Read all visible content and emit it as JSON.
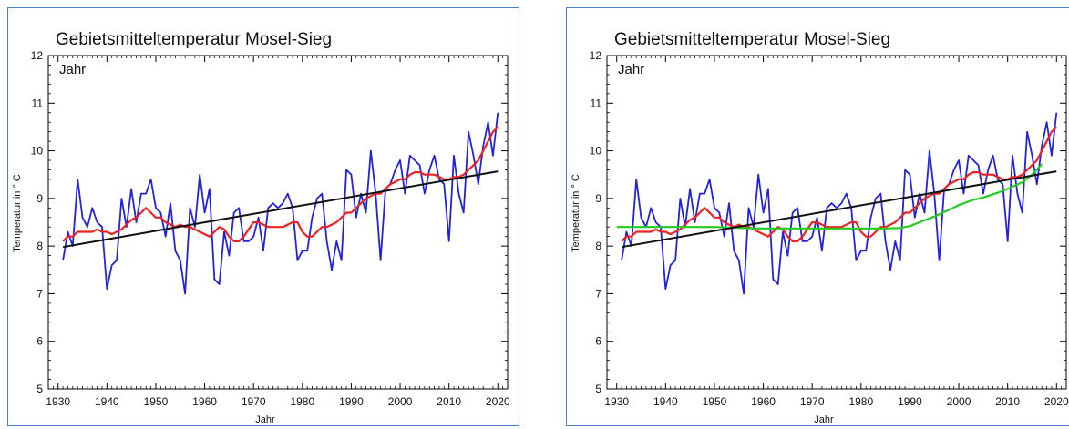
{
  "chart_data": [
    {
      "type": "line",
      "title": "Gebietsmitteltemperatur Mosel-Sieg",
      "corner_label": "Jahr",
      "xlabel": "Jahr",
      "ylabel": "Temperatur in ° C",
      "xlim": [
        1928,
        2022
      ],
      "ylim": [
        5,
        12
      ],
      "x_ticks": [
        1930,
        1940,
        1950,
        1960,
        1970,
        1980,
        1990,
        2000,
        2010,
        2020
      ],
      "y_ticks": [
        5,
        6,
        7,
        8,
        9,
        10,
        11,
        12
      ],
      "x_tick_labels": [
        "1930",
        "1940",
        "1950",
        "1960",
        "1970",
        "1980",
        "1990",
        "2000",
        "2010",
        "2020"
      ],
      "y_tick_labels": [
        "5",
        "6",
        "7",
        "8",
        "9",
        "10",
        "11",
        "12"
      ],
      "grid": false,
      "series": [
        {
          "color": "#2222dd",
          "x": [
            1931,
            1932,
            1933,
            1934,
            1935,
            1936,
            1937,
            1938,
            1939,
            1940,
            1941,
            1942,
            1943,
            1944,
            1945,
            1946,
            1947,
            1948,
            1949,
            1950,
            1951,
            1952,
            1953,
            1954,
            1955,
            1956,
            1957,
            1958,
            1959,
            1960,
            1961,
            1962,
            1963,
            1964,
            1965,
            1966,
            1967,
            1968,
            1969,
            1970,
            1971,
            1972,
            1973,
            1974,
            1975,
            1976,
            1977,
            1978,
            1979,
            1980,
            1981,
            1982,
            1983,
            1984,
            1985,
            1986,
            1987,
            1988,
            1989,
            1990,
            1991,
            1992,
            1993,
            1994,
            1995,
            1996,
            1997,
            1998,
            1999,
            2000,
            2001,
            2002,
            2003,
            2004,
            2005,
            2006,
            2007,
            2008,
            2009,
            2010,
            2011,
            2012,
            2013,
            2014,
            2015,
            2016,
            2017,
            2018,
            2019,
            2020
          ],
          "values": [
            7.7,
            8.3,
            8.0,
            9.4,
            8.6,
            8.4,
            8.8,
            8.5,
            8.4,
            7.1,
            7.6,
            7.7,
            9.0,
            8.4,
            9.2,
            8.5,
            9.1,
            9.1,
            9.4,
            8.8,
            8.7,
            8.2,
            8.9,
            7.9,
            7.7,
            7.0,
            8.8,
            8.4,
            9.5,
            8.7,
            9.2,
            7.3,
            7.2,
            8.3,
            7.8,
            8.7,
            8.8,
            8.1,
            8.1,
            8.2,
            8.6,
            7.9,
            8.8,
            8.9,
            8.8,
            8.9,
            9.1,
            8.8,
            7.7,
            7.9,
            7.9,
            8.6,
            9.0,
            9.1,
            8.1,
            7.5,
            8.1,
            7.7,
            9.6,
            9.5,
            8.6,
            9.1,
            8.7,
            10.0,
            9.1,
            7.7,
            9.2,
            9.3,
            9.6,
            9.8,
            9.1,
            9.9,
            9.8,
            9.7,
            9.1,
            9.6,
            9.9,
            9.4,
            9.3,
            8.1,
            9.9,
            9.1,
            8.7,
            10.4,
            9.9,
            9.3,
            10.1,
            10.6,
            9.9,
            10.8
          ]
        },
        {
          "color": "#ee2222",
          "x": [
            1931,
            1932,
            1933,
            1934,
            1935,
            1936,
            1937,
            1938,
            1939,
            1940,
            1941,
            1942,
            1943,
            1944,
            1945,
            1946,
            1947,
            1948,
            1949,
            1950,
            1951,
            1952,
            1953,
            1954,
            1955,
            1956,
            1957,
            1958,
            1959,
            1960,
            1961,
            1962,
            1963,
            1964,
            1965,
            1966,
            1967,
            1968,
            1969,
            1970,
            1971,
            1972,
            1973,
            1974,
            1975,
            1976,
            1977,
            1978,
            1979,
            1980,
            1981,
            1982,
            1983,
            1984,
            1985,
            1986,
            1987,
            1988,
            1989,
            1990,
            1991,
            1992,
            1993,
            1994,
            1995,
            1996,
            1997,
            1998,
            1999,
            2000,
            2001,
            2002,
            2003,
            2004,
            2005,
            2006,
            2007,
            2008,
            2009,
            2010,
            2011,
            2012,
            2013,
            2014,
            2015,
            2016,
            2017,
            2018,
            2019,
            2020
          ],
          "values": [
            8.1,
            8.2,
            8.2,
            8.3,
            8.3,
            8.3,
            8.3,
            8.35,
            8.3,
            8.3,
            8.25,
            8.3,
            8.35,
            8.45,
            8.55,
            8.6,
            8.7,
            8.8,
            8.7,
            8.6,
            8.6,
            8.5,
            8.45,
            8.4,
            8.45,
            8.4,
            8.4,
            8.35,
            8.3,
            8.25,
            8.2,
            8.3,
            8.4,
            8.35,
            8.2,
            8.1,
            8.1,
            8.2,
            8.35,
            8.5,
            8.5,
            8.45,
            8.4,
            8.4,
            8.4,
            8.4,
            8.45,
            8.5,
            8.5,
            8.3,
            8.2,
            8.2,
            8.3,
            8.4,
            8.4,
            8.45,
            8.5,
            8.6,
            8.7,
            8.7,
            8.8,
            8.9,
            9.0,
            9.05,
            9.1,
            9.1,
            9.2,
            9.3,
            9.35,
            9.4,
            9.4,
            9.5,
            9.55,
            9.55,
            9.5,
            9.5,
            9.5,
            9.45,
            9.4,
            9.4,
            9.45,
            9.45,
            9.5,
            9.6,
            9.7,
            9.8,
            10.0,
            10.2,
            10.4,
            10.5
          ]
        },
        {
          "color": "#111111",
          "x": [
            1931,
            2020
          ],
          "values": [
            7.98,
            9.57
          ]
        }
      ]
    },
    {
      "type": "line",
      "title": "Gebietsmitteltemperatur Mosel-Sieg",
      "corner_label": "Jahr",
      "xlabel": "Jahr",
      "ylabel": "Temperatur in ° C",
      "xlim": [
        1928,
        2022
      ],
      "ylim": [
        5,
        12
      ],
      "x_ticks": [
        1930,
        1940,
        1950,
        1960,
        1970,
        1980,
        1990,
        2000,
        2010,
        2020
      ],
      "y_ticks": [
        5,
        6,
        7,
        8,
        9,
        10,
        11,
        12
      ],
      "x_tick_labels": [
        "1930",
        "1940",
        "1950",
        "1960",
        "1970",
        "1980",
        "1990",
        "2000",
        "2010",
        "2020"
      ],
      "y_tick_labels": [
        "5",
        "6",
        "7",
        "8",
        "9",
        "10",
        "11",
        "12"
      ],
      "grid": false,
      "series": [
        {
          "color": "#2222dd",
          "x": [
            1931,
            1932,
            1933,
            1934,
            1935,
            1936,
            1937,
            1938,
            1939,
            1940,
            1941,
            1942,
            1943,
            1944,
            1945,
            1946,
            1947,
            1948,
            1949,
            1950,
            1951,
            1952,
            1953,
            1954,
            1955,
            1956,
            1957,
            1958,
            1959,
            1960,
            1961,
            1962,
            1963,
            1964,
            1965,
            1966,
            1967,
            1968,
            1969,
            1970,
            1971,
            1972,
            1973,
            1974,
            1975,
            1976,
            1977,
            1978,
            1979,
            1980,
            1981,
            1982,
            1983,
            1984,
            1985,
            1986,
            1987,
            1988,
            1989,
            1990,
            1991,
            1992,
            1993,
            1994,
            1995,
            1996,
            1997,
            1998,
            1999,
            2000,
            2001,
            2002,
            2003,
            2004,
            2005,
            2006,
            2007,
            2008,
            2009,
            2010,
            2011,
            2012,
            2013,
            2014,
            2015,
            2016,
            2017,
            2018,
            2019,
            2020
          ],
          "values": [
            7.7,
            8.3,
            8.0,
            9.4,
            8.6,
            8.4,
            8.8,
            8.5,
            8.4,
            7.1,
            7.6,
            7.7,
            9.0,
            8.4,
            9.2,
            8.5,
            9.1,
            9.1,
            9.4,
            8.8,
            8.7,
            8.2,
            8.9,
            7.9,
            7.7,
            7.0,
            8.8,
            8.4,
            9.5,
            8.7,
            9.2,
            7.3,
            7.2,
            8.3,
            7.8,
            8.7,
            8.8,
            8.1,
            8.1,
            8.2,
            8.6,
            7.9,
            8.8,
            8.9,
            8.8,
            8.9,
            9.1,
            8.8,
            7.7,
            7.9,
            7.9,
            8.6,
            9.0,
            9.1,
            8.1,
            7.5,
            8.1,
            7.7,
            9.6,
            9.5,
            8.6,
            9.1,
            8.7,
            10.0,
            9.1,
            7.7,
            9.2,
            9.3,
            9.6,
            9.8,
            9.1,
            9.9,
            9.8,
            9.7,
            9.1,
            9.6,
            9.9,
            9.4,
            9.3,
            8.1,
            9.9,
            9.1,
            8.7,
            10.4,
            9.9,
            9.3,
            10.1,
            10.6,
            9.9,
            10.8
          ]
        },
        {
          "color": "#ee2222",
          "x": [
            1931,
            1932,
            1933,
            1934,
            1935,
            1936,
            1937,
            1938,
            1939,
            1940,
            1941,
            1942,
            1943,
            1944,
            1945,
            1946,
            1947,
            1948,
            1949,
            1950,
            1951,
            1952,
            1953,
            1954,
            1955,
            1956,
            1957,
            1958,
            1959,
            1960,
            1961,
            1962,
            1963,
            1964,
            1965,
            1966,
            1967,
            1968,
            1969,
            1970,
            1971,
            1972,
            1973,
            1974,
            1975,
            1976,
            1977,
            1978,
            1979,
            1980,
            1981,
            1982,
            1983,
            1984,
            1985,
            1986,
            1987,
            1988,
            1989,
            1990,
            1991,
            1992,
            1993,
            1994,
            1995,
            1996,
            1997,
            1998,
            1999,
            2000,
            2001,
            2002,
            2003,
            2004,
            2005,
            2006,
            2007,
            2008,
            2009,
            2010,
            2011,
            2012,
            2013,
            2014,
            2015,
            2016,
            2017,
            2018,
            2019,
            2020
          ],
          "values": [
            8.1,
            8.2,
            8.2,
            8.3,
            8.3,
            8.3,
            8.3,
            8.35,
            8.3,
            8.3,
            8.25,
            8.3,
            8.35,
            8.45,
            8.55,
            8.6,
            8.7,
            8.8,
            8.7,
            8.6,
            8.6,
            8.5,
            8.45,
            8.4,
            8.45,
            8.4,
            8.4,
            8.35,
            8.3,
            8.25,
            8.2,
            8.3,
            8.4,
            8.35,
            8.2,
            8.1,
            8.1,
            8.2,
            8.35,
            8.5,
            8.5,
            8.45,
            8.4,
            8.4,
            8.4,
            8.4,
            8.45,
            8.5,
            8.5,
            8.3,
            8.2,
            8.2,
            8.3,
            8.4,
            8.4,
            8.45,
            8.5,
            8.6,
            8.7,
            8.7,
            8.8,
            8.9,
            9.0,
            9.05,
            9.1,
            9.1,
            9.2,
            9.3,
            9.35,
            9.4,
            9.4,
            9.5,
            9.55,
            9.55,
            9.5,
            9.5,
            9.5,
            9.45,
            9.4,
            9.4,
            9.45,
            9.45,
            9.5,
            9.6,
            9.7,
            9.8,
            10.0,
            10.2,
            10.4,
            10.5
          ]
        },
        {
          "color": "#22cc22",
          "x": [
            1930,
            1935,
            1940,
            1945,
            1950,
            1955,
            1960,
            1965,
            1970,
            1975,
            1980,
            1985,
            1988,
            1990,
            1992,
            1995,
            1998,
            2000,
            2003,
            2005,
            2008,
            2010,
            2013,
            2015,
            2017
          ],
          "values": [
            8.4,
            8.4,
            8.4,
            8.4,
            8.4,
            8.38,
            8.37,
            8.37,
            8.37,
            8.37,
            8.37,
            8.37,
            8.38,
            8.42,
            8.5,
            8.62,
            8.76,
            8.86,
            8.97,
            9.02,
            9.12,
            9.2,
            9.34,
            9.5,
            9.72
          ]
        },
        {
          "color": "#111111",
          "x": [
            1931,
            2020
          ],
          "values": [
            7.98,
            9.57
          ]
        }
      ]
    }
  ]
}
